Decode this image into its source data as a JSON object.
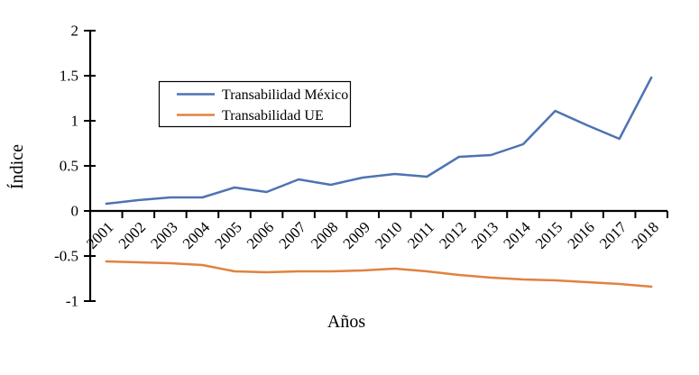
{
  "chart_data": {
    "type": "line",
    "title": "",
    "xlabel": "Años",
    "ylabel": "Índice",
    "categories": [
      "2001",
      "2002",
      "2003",
      "2004",
      "2005",
      "2006",
      "2007",
      "2008",
      "2009",
      "2010",
      "2011",
      "2012",
      "2013",
      "2014",
      "2015",
      "2016",
      "2017",
      "2018"
    ],
    "series": [
      {
        "name": "Transabilidad México",
        "color": "#4e73b2",
        "values": [
          0.08,
          0.12,
          0.15,
          0.15,
          0.26,
          0.21,
          0.35,
          0.29,
          0.37,
          0.41,
          0.38,
          0.6,
          0.62,
          0.74,
          1.11,
          0.95,
          0.8,
          1.48
        ]
      },
      {
        "name": "Transabilidad UE",
        "color": "#e0823f",
        "values": [
          -0.56,
          -0.57,
          -0.58,
          -0.6,
          -0.67,
          -0.68,
          -0.67,
          -0.67,
          -0.66,
          -0.64,
          -0.67,
          -0.71,
          -0.74,
          -0.76,
          -0.77,
          -0.79,
          -0.81,
          -0.84
        ]
      }
    ],
    "ylim": [
      -1,
      2
    ],
    "yticks": [
      2,
      1.5,
      1,
      0.5,
      0,
      -0.5,
      -1
    ],
    "ytick_labels": [
      "2",
      "1.5",
      "1",
      "0.5",
      "0",
      "-0.5",
      "-1"
    ],
    "x_tick_rotation_deg": -45,
    "grid": false,
    "legend_position": "inside-upper-left",
    "axis_color": "#000000",
    "background_color": "#ffffff"
  }
}
